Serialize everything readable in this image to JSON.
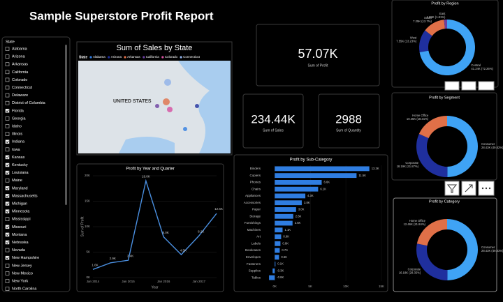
{
  "title": "Sample Superstore Profit  Report",
  "slicer": {
    "title": "State",
    "items": [
      {
        "label": "Alabama",
        "checked": false
      },
      {
        "label": "Arizona",
        "checked": false
      },
      {
        "label": "Arkansas",
        "checked": false
      },
      {
        "label": "California",
        "checked": false
      },
      {
        "label": "Colorado",
        "checked": false
      },
      {
        "label": "Connecticut",
        "checked": false
      },
      {
        "label": "Delaware",
        "checked": false
      },
      {
        "label": "District of Columbia",
        "checked": false
      },
      {
        "label": "Florida",
        "checked": true
      },
      {
        "label": "Georgia",
        "checked": false
      },
      {
        "label": "Idaho",
        "checked": false
      },
      {
        "label": "Illinois",
        "checked": false
      },
      {
        "label": "Indiana",
        "checked": true
      },
      {
        "label": "Iowa",
        "checked": false
      },
      {
        "label": "Kansas",
        "checked": true
      },
      {
        "label": "Kentucky",
        "checked": true
      },
      {
        "label": "Louisiana",
        "checked": true
      },
      {
        "label": "Maine",
        "checked": false
      },
      {
        "label": "Maryland",
        "checked": true
      },
      {
        "label": "Massachusetts",
        "checked": true
      },
      {
        "label": "Michigan",
        "checked": true
      },
      {
        "label": "Minnesota",
        "checked": true
      },
      {
        "label": "Mississippi",
        "checked": false
      },
      {
        "label": "Missouri",
        "checked": true
      },
      {
        "label": "Montana",
        "checked": true
      },
      {
        "label": "Nebraska",
        "checked": true
      },
      {
        "label": "Nevada",
        "checked": false
      },
      {
        "label": "New Hampshire",
        "checked": true
      },
      {
        "label": "New Jersey",
        "checked": false
      },
      {
        "label": "New Mexico",
        "checked": false
      },
      {
        "label": "New York",
        "checked": false
      },
      {
        "label": "North Carolina",
        "checked": false
      }
    ]
  },
  "map": {
    "title": "Sum of Sales by State",
    "legend_title": "State",
    "legend": [
      "Alabama",
      "Arizona",
      "Arkansas",
      "California",
      "Colorado",
      "Connecticut"
    ],
    "legend_colors": [
      "#2f7de1",
      "#1f2f9e",
      "#e07048",
      "#6b3fa0",
      "#d64fa0",
      "#8fb0e8"
    ],
    "label": "UNITED STATES"
  },
  "cards": [
    {
      "value": "57.07K",
      "label": "Sum of Profit"
    },
    {
      "value": "234.44K",
      "label": "Sum of Sales"
    },
    {
      "value": "2988",
      "label": "Sum of Quantity"
    }
  ],
  "chart_data": [
    {
      "type": "line",
      "title": "Profit by Year and Quarter",
      "x_label": "Year",
      "y_label": "Sum of Profit",
      "categories": [
        "Jan 2014",
        null,
        "Jan 2015",
        null,
        "Jan 2016",
        null,
        "Jan 2017",
        null
      ],
      "values": [
        1600,
        2900,
        3400,
        19000,
        8000,
        4500,
        8200,
        12600
      ],
      "value_labels": [
        "1.6K",
        "2.9K",
        "3.4K",
        "19.0K",
        "8.0K",
        "4.5K",
        "8.2K",
        "12.6K"
      ],
      "color": "#4a8fe0",
      "ylim": [
        0,
        20000
      ],
      "yticks": [
        {
          "value": 0,
          "label": "0K"
        },
        {
          "value": 5000,
          "label": "5K"
        },
        {
          "value": 10000,
          "label": "10K"
        },
        {
          "value": 15000,
          "label": "15K"
        },
        {
          "value": 20000,
          "label": "20K"
        }
      ]
    },
    {
      "type": "bar",
      "title": "Profit by Sub-Category",
      "categories": [
        "Binders",
        "Copiers",
        "Phones",
        "Chairs",
        "Appliances",
        "Accessories",
        "Paper",
        "Storage",
        "Furnishings",
        "Machines",
        "Art",
        "Labels",
        "Bookcases",
        "Envelopes",
        "Fasteners",
        "Supplies",
        "Tables"
      ],
      "values": [
        13300,
        11500,
        6600,
        6100,
        4300,
        3800,
        3000,
        2600,
        2500,
        1100,
        900,
        800,
        700,
        600,
        100,
        -300,
        -800
      ],
      "value_labels": [
        "13.3K",
        "11.5K",
        "6.6K",
        "6.1K",
        "4.3K",
        "3.8K",
        "3.0K",
        "2.6K",
        "2.5K",
        "1.1K",
        "0.9K",
        "0.8K",
        "0.7K",
        "0.6K",
        "0.1K",
        "-0.3K",
        "-0.8K"
      ],
      "color": "#2f7de1",
      "xlim": [
        -1500,
        15000
      ],
      "xticks": [
        {
          "value": 0,
          "label": "0K"
        },
        {
          "value": 5000,
          "label": "5K"
        },
        {
          "value": 10000,
          "label": "10K"
        },
        {
          "value": 15000,
          "label": "15K"
        }
      ]
    },
    {
      "type": "pie",
      "title": "Profit by Region",
      "categories": [
        "Central",
        "West",
        "South",
        "East"
      ],
      "values": [
        41240,
        7550,
        7250,
        1030
      ],
      "value_labels": [
        "41.24K (72.26%)",
        "7.55K (13.23%)",
        "7.25K (12.7%)",
        "1.03K (1.81%)"
      ],
      "colors": [
        "#3fa3f5",
        "#1f2f9e",
        "#e07048",
        "#6b3fa0"
      ]
    },
    {
      "type": "pie",
      "title": "Profit by Segment",
      "categories": [
        "Consumer",
        "Corporate",
        "Home Office"
      ],
      "values": [
        28430,
        18190,
        10450
      ],
      "value_labels": [
        "28.43K (49.82%)",
        "18.19K (31.87%)",
        "10.45K (18.31%)"
      ],
      "colors": [
        "#3fa3f5",
        "#1f2f9e",
        "#e07048"
      ]
    },
    {
      "type": "pie",
      "title": "Profit by Category",
      "categories": [
        "Consumer",
        "Corporate",
        "Home Office"
      ],
      "values": [
        28430,
        16180,
        12460
      ],
      "value_labels": [
        "28.43K (49.83%)",
        "16.18K (28.35%)",
        "12.46K (21.84%)"
      ],
      "colors": [
        "#3fa3f5",
        "#1f2f9e",
        "#e07048"
      ]
    }
  ]
}
